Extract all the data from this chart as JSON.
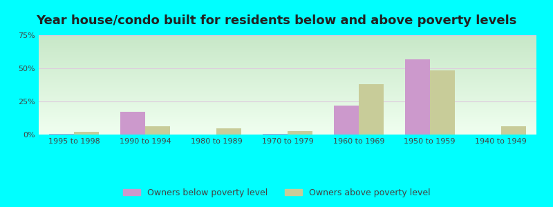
{
  "title": "Year house/condo built for residents below and above poverty levels",
  "categories": [
    "1995 to 1998",
    "1990 to 1994",
    "1980 to 1989",
    "1970 to 1979",
    "1960 to 1969",
    "1950 to 1959",
    "1940 to 1949"
  ],
  "below_poverty": [
    0.5,
    17.0,
    0.0,
    0.5,
    22.0,
    57.0,
    0.0
  ],
  "above_poverty": [
    2.0,
    6.5,
    4.5,
    2.5,
    38.0,
    48.5,
    6.5
  ],
  "below_color": "#cc99cc",
  "above_color": "#c8cc99",
  "ylim": [
    0,
    75
  ],
  "yticks": [
    0,
    25,
    50,
    75
  ],
  "yticklabels": [
    "0%",
    "25%",
    "50%",
    "75%"
  ],
  "grad_top": "#c8e8c8",
  "grad_bottom": "#f0fff0",
  "outer_bg": "#00ffff",
  "bar_width": 0.35,
  "legend_below": "Owners below poverty level",
  "legend_above": "Owners above poverty level",
  "title_fontsize": 13,
  "tick_fontsize": 8,
  "legend_fontsize": 9
}
